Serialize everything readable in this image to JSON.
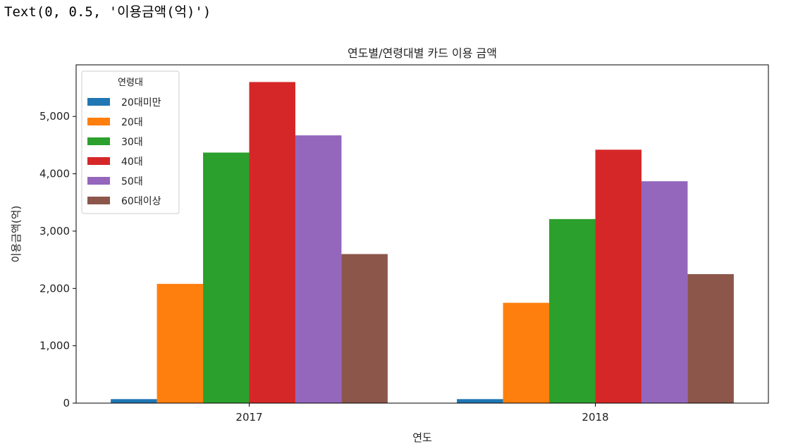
{
  "output_line": "Text(0, 0.5, '이용금액(억)')",
  "chart_data": {
    "type": "bar",
    "title": "연도별/연령대별 카드 이용 금액",
    "xlabel": "연도",
    "ylabel": "이용금액(억)",
    "categories": [
      "2017",
      "2018"
    ],
    "ylim": [
      0,
      5900
    ],
    "yticks": [
      0,
      1000,
      2000,
      3000,
      4000,
      5000
    ],
    "ytick_labels": [
      "0",
      "1,000",
      "2,000",
      "3,000",
      "4,000",
      "5,000"
    ],
    "legend": {
      "title": "연령대",
      "placement": "upper left"
    },
    "grid": false,
    "series": [
      {
        "name": "20대미만",
        "color": "#1f77b4",
        "values": [
          70,
          70
        ]
      },
      {
        "name": "20대",
        "color": "#ff7f0e",
        "values": [
          2080,
          1750
        ]
      },
      {
        "name": "30대",
        "color": "#2ca02c",
        "values": [
          4370,
          3210
        ]
      },
      {
        "name": "40대",
        "color": "#d62728",
        "values": [
          5600,
          4420
        ]
      },
      {
        "name": "50대",
        "color": "#9467bd",
        "values": [
          4670,
          3870
        ]
      },
      {
        "name": "60대이상",
        "color": "#8c564b",
        "values": [
          2600,
          2250
        ]
      }
    ]
  }
}
